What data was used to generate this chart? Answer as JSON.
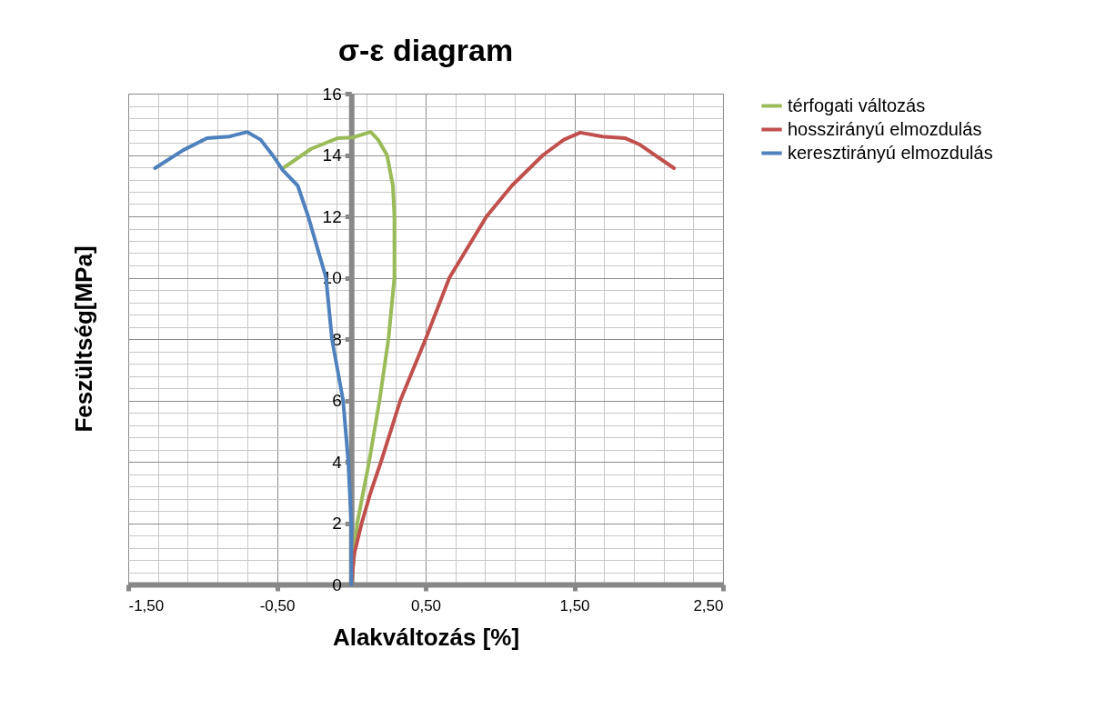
{
  "chart_data": {
    "type": "line",
    "title": "σ-ε diagram",
    "xlabel": "Alakváltozás [%]",
    "ylabel": "Feszültség[MPa]",
    "xlim": [
      -1.5,
      2.5
    ],
    "ylim": [
      0,
      16
    ],
    "xticks": [
      {
        "value": -1.5,
        "label": "-1,50"
      },
      {
        "value": -1.3,
        "label": null
      },
      {
        "value": -1.1,
        "label": null
      },
      {
        "value": -0.9,
        "label": null
      },
      {
        "value": -0.7,
        "label": null
      },
      {
        "value": -0.5,
        "label": "-0,50"
      },
      {
        "value": -0.3,
        "label": null
      },
      {
        "value": -0.1,
        "label": null
      },
      {
        "value": 0.1,
        "label": null
      },
      {
        "value": 0.3,
        "label": null
      },
      {
        "value": 0.5,
        "label": "0,50"
      },
      {
        "value": 0.7,
        "label": null
      },
      {
        "value": 0.9,
        "label": null
      },
      {
        "value": 1.1,
        "label": null
      },
      {
        "value": 1.3,
        "label": null
      },
      {
        "value": 1.5,
        "label": "1,50"
      },
      {
        "value": 1.7,
        "label": null
      },
      {
        "value": 1.9,
        "label": null
      },
      {
        "value": 2.1,
        "label": null
      },
      {
        "value": 2.3,
        "label": null
      },
      {
        "value": 2.5,
        "label": "2,50"
      }
    ],
    "yticks": [
      0,
      {
        "value": 0.4,
        "label": null
      },
      {
        "value": 0.8,
        "label": null
      },
      {
        "value": 1.2,
        "label": null
      },
      {
        "value": 1.6,
        "label": null
      },
      2,
      {
        "value": 2.4,
        "label": null
      },
      {
        "value": 2.8,
        "label": null
      },
      {
        "value": 3.2,
        "label": null
      },
      {
        "value": 3.6,
        "label": null
      },
      4,
      {
        "value": 4.4,
        "label": null
      },
      {
        "value": 4.8,
        "label": null
      },
      {
        "value": 5.2,
        "label": null
      },
      {
        "value": 5.6,
        "label": null
      },
      6,
      {
        "value": 6.4,
        "label": null
      },
      {
        "value": 6.8,
        "label": null
      },
      {
        "value": 7.2,
        "label": null
      },
      {
        "value": 7.6,
        "label": null
      },
      8,
      {
        "value": 8.4,
        "label": null
      },
      {
        "value": 8.8,
        "label": null
      },
      {
        "value": 9.2,
        "label": null
      },
      {
        "value": 9.6,
        "label": null
      },
      10,
      {
        "value": 10.4,
        "label": null
      },
      {
        "value": 10.8,
        "label": null
      },
      {
        "value": 11.2,
        "label": null
      },
      {
        "value": 11.6,
        "label": null
      },
      12,
      {
        "value": 12.4,
        "label": null
      },
      {
        "value": 12.8,
        "label": null
      },
      {
        "value": 13.2,
        "label": null
      },
      {
        "value": 13.6,
        "label": null
      },
      14,
      {
        "value": 14.4,
        "label": null
      },
      {
        "value": 14.8,
        "label": null
      },
      {
        "value": 15.2,
        "label": null
      },
      {
        "value": 15.6,
        "label": null
      },
      16
    ],
    "grid": true,
    "legend": "right",
    "marker": "none",
    "line_style": "solid",
    "series": [
      {
        "name": "térfogati változás",
        "color": "#9bbb59",
        "x": [
          0,
          0.04,
          0.12,
          0.19,
          0.25,
          0.29,
          0.29,
          0.28,
          0.24,
          0.18,
          0.13,
          0.01,
          -0.09,
          -0.27,
          -0.45
        ],
        "values": [
          0,
          2,
          4,
          6,
          8,
          10,
          12,
          13,
          14,
          14.5,
          14.75,
          14.57,
          14.55,
          14.2,
          13.6
        ]
      },
      {
        "name": "hosszirányú elmozdulás",
        "color": "#c0504d",
        "x": [
          0,
          0.02,
          0.07,
          0.13,
          0.2,
          0.33,
          0.5,
          0.66,
          0.91,
          1.08,
          1.29,
          1.43,
          1.54,
          1.69,
          1.84,
          1.94,
          2.17
        ],
        "values": [
          0,
          1,
          2,
          3,
          4,
          6,
          8,
          10,
          12,
          13,
          14,
          14.5,
          14.73,
          14.6,
          14.55,
          14.34,
          13.57
        ]
      },
      {
        "name": "keresztirányú elmozdulás",
        "color": "#4f81bd",
        "x": [
          0,
          0,
          -0.02,
          -0.055,
          -0.13,
          -0.17,
          -0.29,
          -0.36,
          -0.46,
          -0.53,
          -0.61,
          -0.7,
          -0.82,
          -0.97,
          -1.13,
          -1.32
        ],
        "values": [
          0,
          2,
          4,
          6,
          8,
          10,
          12,
          13,
          13.5,
          14,
          14.5,
          14.75,
          14.6,
          14.55,
          14.16,
          13.57
        ]
      }
    ]
  }
}
